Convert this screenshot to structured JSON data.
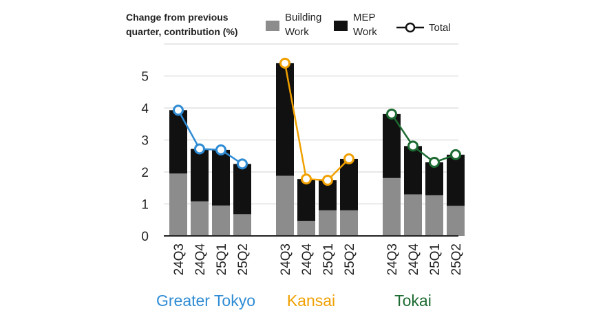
{
  "chart_data": {
    "type": "bar",
    "subtype": "stacked-bar-with-line",
    "ylabel": [
      "Change from previous",
      "quarter, contribution (%)"
    ],
    "ylim": [
      0,
      6
    ],
    "yticks": [
      0,
      1,
      2,
      3,
      4,
      5
    ],
    "grid": true,
    "legend": {
      "placement": "top-right",
      "building": [
        "Building",
        "Work"
      ],
      "mep": [
        "MEP",
        "Work"
      ],
      "total": "Total"
    },
    "colors": {
      "building": "#8c8c8c",
      "mep": "#111111",
      "grid": "#d9d9d9",
      "axis": "#222222"
    },
    "groups": [
      {
        "name": "Greater Tokyo",
        "color": "#2e8bd4",
        "categories": [
          "24Q3",
          "24Q4",
          "25Q1",
          "25Q2"
        ],
        "building": [
          1.95,
          1.08,
          0.95,
          0.68
        ],
        "mep": [
          1.98,
          1.64,
          1.74,
          1.57
        ],
        "total": [
          3.93,
          2.72,
          2.69,
          2.25
        ]
      },
      {
        "name": "Kansai",
        "color": "#f0a000",
        "categories": [
          "24Q3",
          "24Q4",
          "25Q1",
          "25Q2"
        ],
        "building": [
          1.88,
          0.47,
          0.8,
          0.8
        ],
        "mep": [
          3.52,
          1.31,
          0.94,
          1.61
        ],
        "total": [
          5.4,
          1.78,
          1.74,
          2.41
        ]
      },
      {
        "name": "Tokai",
        "color": "#1d6b32",
        "categories": [
          "24Q3",
          "24Q4",
          "25Q1",
          "25Q2"
        ],
        "building": [
          1.81,
          1.3,
          1.27,
          0.94
        ],
        "mep": [
          2.0,
          1.51,
          1.03,
          1.6
        ],
        "total": [
          3.81,
          2.81,
          2.3,
          2.54
        ]
      }
    ]
  }
}
